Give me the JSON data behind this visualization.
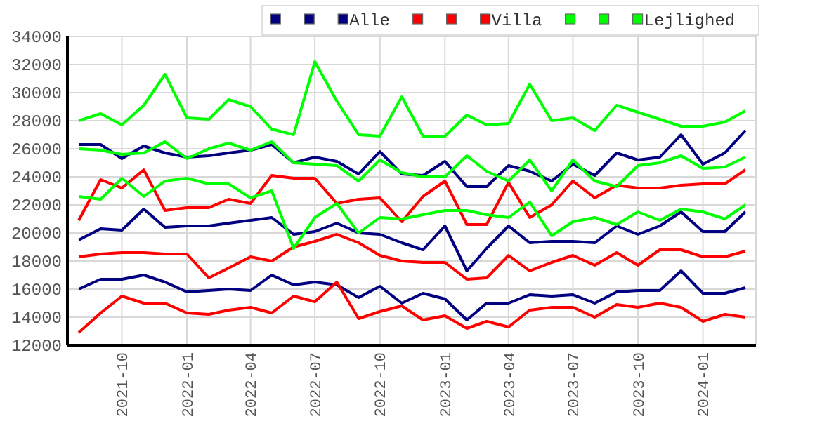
{
  "chart_data": {
    "type": "line",
    "x": [
      "2021-08",
      "2021-09",
      "2021-10",
      "2021-11",
      "2021-12",
      "2022-01",
      "2022-02",
      "2022-03",
      "2022-04",
      "2022-05",
      "2022-06",
      "2022-07",
      "2022-08",
      "2022-09",
      "2022-10",
      "2022-11",
      "2022-12",
      "2023-01",
      "2023-02",
      "2023-03",
      "2023-04",
      "2023-05",
      "2023-06",
      "2023-07",
      "2023-08",
      "2023-09",
      "2023-10",
      "2023-11",
      "2023-12",
      "2024-01",
      "2024-02",
      "2024-03"
    ],
    "series": [
      {
        "color": "#000080",
        "values": [
          16000,
          16700,
          16700,
          17000,
          16500,
          15800,
          15900,
          16000,
          15900,
          17000,
          16300,
          16500,
          16300,
          15400,
          16200,
          15000,
          15700,
          15300,
          13800,
          15000,
          15000,
          15600,
          15500,
          15600,
          15000,
          15800,
          15900,
          15900,
          17300,
          15700,
          15700,
          16100
        ]
      },
      {
        "color": "#000080",
        "values": [
          19500,
          20300,
          20200,
          21700,
          20400,
          20500,
          20500,
          20700,
          20900,
          21100,
          19900,
          20100,
          20700,
          20000,
          19900,
          19300,
          18800,
          20500,
          17300,
          18900,
          20500,
          19300,
          19400,
          19400,
          19300,
          20500,
          19900,
          20500,
          21500,
          20100,
          20100,
          21500
        ]
      },
      {
        "name": "Alle",
        "color": "#000080",
        "values": [
          26300,
          26300,
          25300,
          26200,
          25700,
          25400,
          25500,
          25700,
          25900,
          26300,
          25000,
          25400,
          25100,
          24200,
          25800,
          24200,
          24100,
          25100,
          23300,
          23300,
          24800,
          24400,
          23700,
          24900,
          24100,
          25700,
          25200,
          25400,
          27000,
          24900,
          25700,
          27300
        ]
      },
      {
        "color": "#ff0000",
        "values": [
          12900,
          14300,
          15500,
          15000,
          15000,
          14300,
          14200,
          14500,
          14700,
          14300,
          15500,
          15100,
          16500,
          13900,
          14400,
          14800,
          13800,
          14100,
          13200,
          13700,
          13300,
          14500,
          14700,
          14700,
          14000,
          14900,
          14700,
          15000,
          14700,
          13700,
          14200,
          14000
        ]
      },
      {
        "color": "#ff0000",
        "values": [
          18300,
          18500,
          18600,
          18600,
          18500,
          18500,
          16800,
          17500,
          18300,
          18000,
          19000,
          19400,
          19900,
          19300,
          18400,
          18000,
          17900,
          17900,
          16700,
          16800,
          18400,
          17300,
          17900,
          18400,
          17700,
          18600,
          17700,
          18800,
          18800,
          18300,
          18300,
          18700
        ]
      },
      {
        "name": "Villa",
        "color": "#ff0000",
        "values": [
          20900,
          23800,
          23200,
          24500,
          21600,
          21800,
          21800,
          22400,
          22100,
          24100,
          23900,
          23900,
          22100,
          22400,
          22500,
          20800,
          22600,
          23700,
          20600,
          20600,
          23600,
          21100,
          22000,
          23700,
          22500,
          23400,
          23200,
          23200,
          23400,
          23500,
          23500,
          24500
        ]
      },
      {
        "color": "#00ff00",
        "values": [
          22600,
          22400,
          23900,
          22600,
          23700,
          23900,
          23500,
          23500,
          22500,
          23000,
          18900,
          21100,
          22100,
          20000,
          21100,
          21000,
          21300,
          21600,
          21600,
          21300,
          21100,
          22200,
          19800,
          20800,
          21100,
          20600,
          21500,
          20900,
          21700,
          21500,
          21000,
          22000
        ]
      },
      {
        "color": "#00ff00",
        "values": [
          26000,
          25900,
          25600,
          25700,
          26500,
          25300,
          26000,
          26400,
          25900,
          26500,
          25000,
          24900,
          24800,
          23700,
          25200,
          24300,
          24000,
          24000,
          25500,
          24400,
          23700,
          25200,
          23000,
          25200,
          23700,
          23300,
          24800,
          25000,
          25500,
          24600,
          24700,
          25400
        ]
      },
      {
        "name": "Lejlighed",
        "color": "#00ff00",
        "values": [
          28000,
          28500,
          27700,
          29100,
          31300,
          28200,
          28100,
          29500,
          29000,
          27400,
          27000,
          32200,
          29400,
          27000,
          26900,
          29700,
          26900,
          26900,
          28400,
          27700,
          27800,
          30600,
          28000,
          28200,
          27300,
          29100,
          28600,
          28100,
          27600,
          27600,
          27900,
          28700
        ]
      }
    ],
    "xlim": [
      "2021-07-16",
      "2024-03-16"
    ],
    "xticks": [
      {
        "value": "2021-10",
        "label": "2021-10"
      },
      {
        "value": "2022-01",
        "label": "2022-01"
      },
      {
        "value": "2022-04",
        "label": "2022-04"
      },
      {
        "value": "2022-07",
        "label": "2022-07"
      },
      {
        "value": "2022-10",
        "label": "2022-10"
      },
      {
        "value": "2023-01",
        "label": "2023-01"
      },
      {
        "value": "2023-04",
        "label": "2023-04"
      },
      {
        "value": "2023-07",
        "label": "2023-07"
      },
      {
        "value": "2023-10",
        "label": "2023-10"
      },
      {
        "value": "2024-01",
        "label": "2024-01"
      }
    ],
    "ylim": [
      12000,
      34000
    ],
    "yticks": [
      12000,
      14000,
      16000,
      18000,
      20000,
      22000,
      24000,
      26000,
      28000,
      30000,
      32000,
      34000
    ],
    "grid": true,
    "legend": "top right",
    "marker": "none",
    "line_style": "solid"
  }
}
